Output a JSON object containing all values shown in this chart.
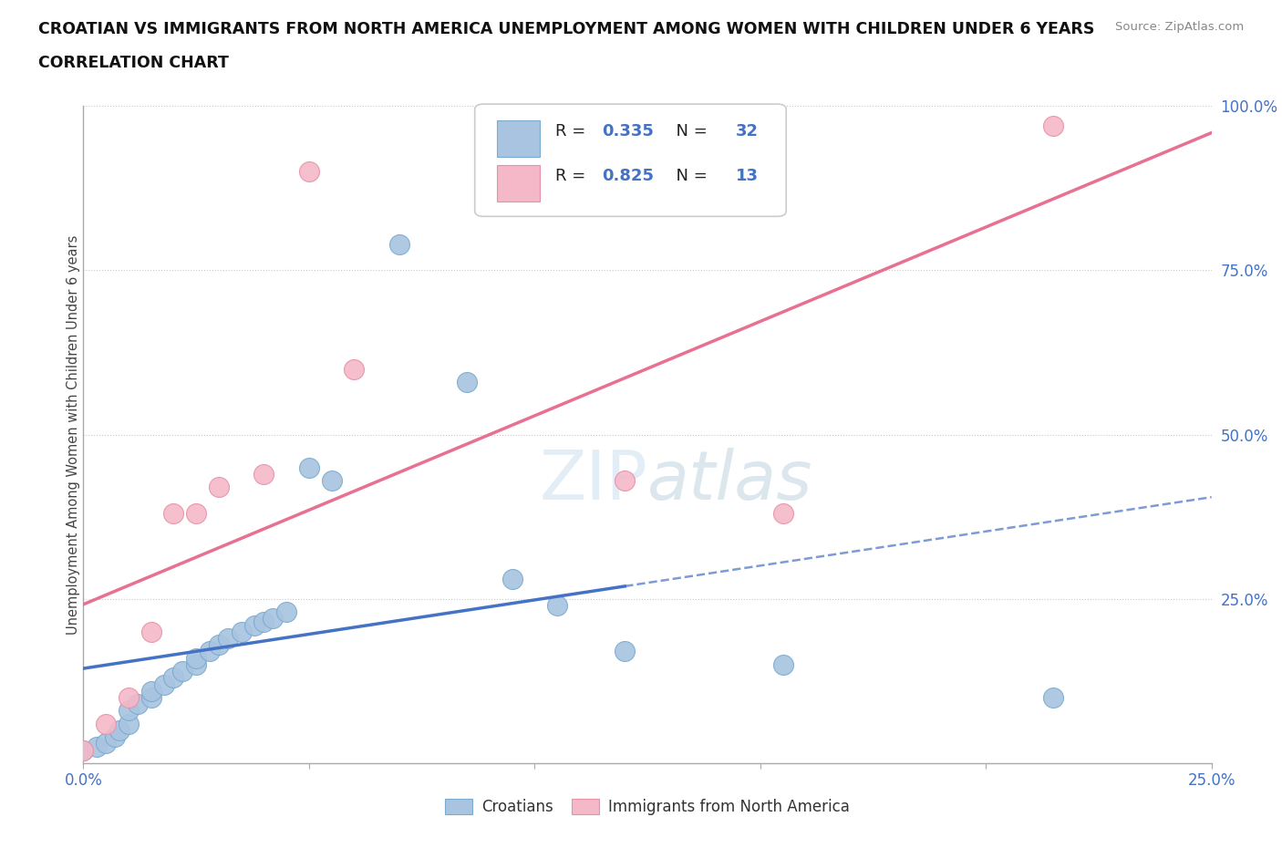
{
  "title_line1": "CROATIAN VS IMMIGRANTS FROM NORTH AMERICA UNEMPLOYMENT AMONG WOMEN WITH CHILDREN UNDER 6 YEARS",
  "title_line2": "CORRELATION CHART",
  "source": "Source: ZipAtlas.com",
  "ylabel": "Unemployment Among Women with Children Under 6 years",
  "x_range": [
    0.0,
    0.25
  ],
  "y_range": [
    0.0,
    1.0
  ],
  "croatians_color": "#a8c4e0",
  "croatians_edge_color": "#7aaace",
  "immigrants_color": "#f4b8c8",
  "immigrants_edge_color": "#e890a8",
  "croatians_line_color": "#4472c4",
  "immigrants_line_color": "#e87090",
  "r_croatians": 0.335,
  "n_croatians": 32,
  "r_immigrants": 0.825,
  "n_immigrants": 13,
  "watermark": "ZIPatlas",
  "croatians_x": [
    0.0,
    0.003,
    0.005,
    0.007,
    0.008,
    0.01,
    0.01,
    0.012,
    0.015,
    0.015,
    0.018,
    0.02,
    0.022,
    0.025,
    0.025,
    0.028,
    0.03,
    0.032,
    0.035,
    0.038,
    0.04,
    0.042,
    0.045,
    0.05,
    0.055,
    0.07,
    0.085,
    0.095,
    0.105,
    0.12,
    0.155,
    0.215
  ],
  "croatians_y": [
    0.02,
    0.025,
    0.03,
    0.04,
    0.05,
    0.06,
    0.08,
    0.09,
    0.1,
    0.11,
    0.12,
    0.13,
    0.14,
    0.15,
    0.16,
    0.17,
    0.18,
    0.19,
    0.2,
    0.21,
    0.215,
    0.22,
    0.23,
    0.45,
    0.43,
    0.79,
    0.58,
    0.28,
    0.24,
    0.17,
    0.15,
    0.1
  ],
  "immigrants_x": [
    0.0,
    0.005,
    0.01,
    0.015,
    0.02,
    0.025,
    0.03,
    0.04,
    0.05,
    0.06,
    0.12,
    0.155,
    0.215
  ],
  "immigrants_y": [
    0.02,
    0.06,
    0.1,
    0.2,
    0.38,
    0.38,
    0.42,
    0.44,
    0.9,
    0.6,
    0.43,
    0.38,
    0.97
  ]
}
